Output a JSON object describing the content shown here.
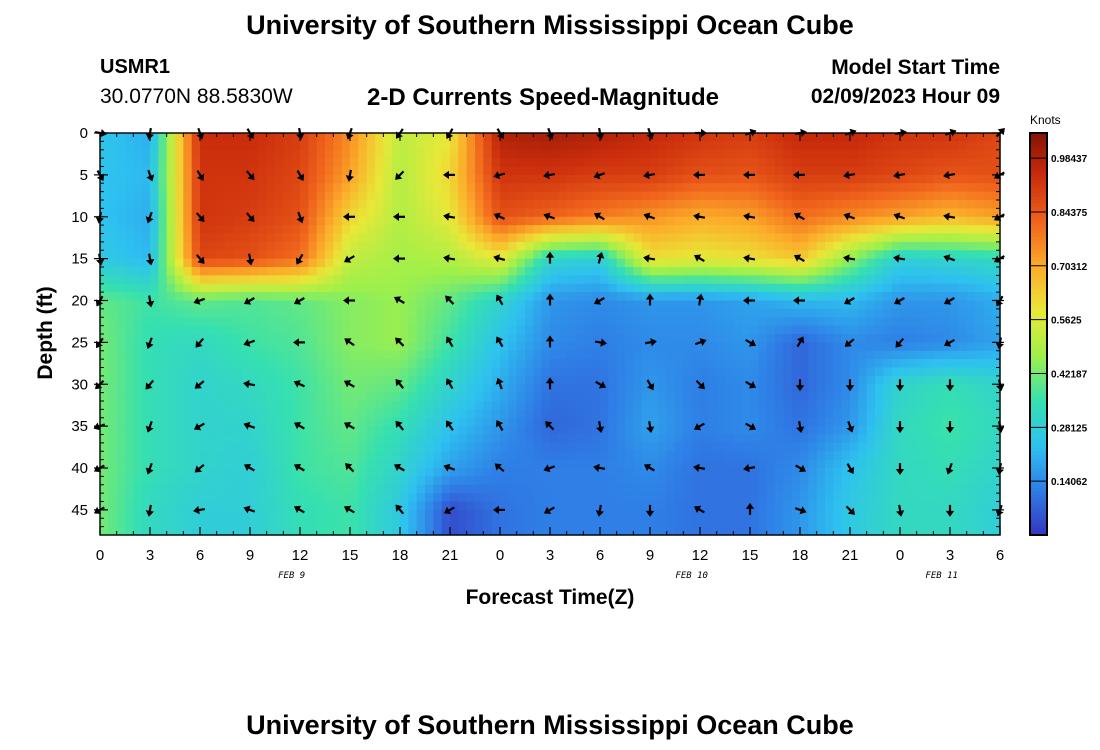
{
  "header": {
    "title": "University of Southern Mississippi Ocean Cube",
    "station": "USMR1",
    "coordinates": "30.0770N  88.5830W",
    "model_start_label": "Model Start Time",
    "model_start_value": "02/09/2023 Hour 09"
  },
  "footer": {
    "title": "University of Southern Mississippi Ocean Cube"
  },
  "chart_data": {
    "type": "heatmap",
    "title": "2-D Currents Speed-Magnitude",
    "xlabel": "Forecast Time(Z)",
    "ylabel": "Depth (ft)",
    "x_hours": [
      0,
      3,
      6,
      9,
      12,
      15,
      18,
      21,
      24,
      27,
      30,
      33,
      36,
      39,
      42,
      45,
      48,
      51,
      54
    ],
    "x_tick_labels": [
      "0",
      "3",
      "6",
      "9",
      "12",
      "15",
      "18",
      "21",
      "0",
      "3",
      "6",
      "9",
      "12",
      "15",
      "18",
      "21",
      "0",
      "3",
      "6"
    ],
    "day_labels": [
      {
        "text": "FEB 9",
        "hour": 11.5
      },
      {
        "text": "FEB 10",
        "hour": 35.5
      },
      {
        "text": "FEB 11",
        "hour": 50.5
      }
    ],
    "depth_levels_ft": [
      0,
      5,
      10,
      15,
      20,
      25,
      30,
      35,
      40,
      45
    ],
    "y_tick_labels": [
      "0",
      "5",
      "10",
      "15",
      "20",
      "25",
      "30",
      "35",
      "40",
      "45"
    ],
    "ylim": [
      0,
      48
    ],
    "xlim": [
      0,
      54
    ],
    "y_inverted": true,
    "colorbar": {
      "unit_label": "Knots",
      "min": 0.0,
      "max": 1.05,
      "tick_values": [
        0.14062,
        0.28125,
        0.42187,
        0.5625,
        0.70312,
        0.84375,
        0.98437
      ],
      "tick_labels": [
        "0.14062",
        "0.28125",
        "0.42187",
        "0.5625",
        "0.70312",
        "0.84375",
        "0.98437"
      ],
      "colors": [
        "#3535c0",
        "#2f7de6",
        "#2ec1f0",
        "#36e0b0",
        "#9ef04a",
        "#e8e838",
        "#fcac2a",
        "#f0641c",
        "#cc2e0c",
        "#861205"
      ]
    },
    "speed_knots": [
      [
        0.25,
        0.2,
        0.94,
        0.94,
        0.9,
        0.75,
        0.52,
        0.58,
        0.98,
        1.0,
        0.98,
        0.95,
        0.92,
        0.9,
        0.95,
        0.95,
        0.92,
        0.92,
        0.88
      ],
      [
        0.24,
        0.22,
        0.92,
        0.92,
        0.88,
        0.72,
        0.5,
        0.62,
        0.92,
        0.92,
        0.9,
        0.9,
        0.86,
        0.85,
        0.9,
        0.9,
        0.88,
        0.85,
        0.86
      ],
      [
        0.24,
        0.2,
        0.92,
        0.9,
        0.86,
        0.62,
        0.5,
        0.58,
        0.86,
        0.82,
        0.78,
        0.74,
        0.7,
        0.72,
        0.8,
        0.76,
        0.72,
        0.68,
        0.72
      ],
      [
        0.26,
        0.22,
        0.88,
        0.86,
        0.8,
        0.52,
        0.48,
        0.5,
        0.58,
        0.3,
        0.28,
        0.6,
        0.58,
        0.6,
        0.65,
        0.45,
        0.28,
        0.3,
        0.32
      ],
      [
        0.4,
        0.36,
        0.4,
        0.38,
        0.4,
        0.44,
        0.46,
        0.4,
        0.3,
        0.16,
        0.14,
        0.16,
        0.16,
        0.18,
        0.22,
        0.22,
        0.16,
        0.16,
        0.2
      ],
      [
        0.42,
        0.34,
        0.32,
        0.36,
        0.38,
        0.44,
        0.46,
        0.36,
        0.24,
        0.14,
        0.12,
        0.14,
        0.14,
        0.16,
        0.08,
        0.14,
        0.12,
        0.14,
        0.18
      ],
      [
        0.42,
        0.34,
        0.3,
        0.32,
        0.36,
        0.42,
        0.4,
        0.3,
        0.2,
        0.1,
        0.1,
        0.16,
        0.12,
        0.14,
        0.08,
        0.14,
        0.3,
        0.34,
        0.3
      ],
      [
        0.42,
        0.34,
        0.3,
        0.3,
        0.36,
        0.4,
        0.34,
        0.24,
        0.16,
        0.08,
        0.1,
        0.18,
        0.12,
        0.14,
        0.1,
        0.16,
        0.32,
        0.36,
        0.32
      ],
      [
        0.42,
        0.34,
        0.3,
        0.28,
        0.36,
        0.38,
        0.3,
        0.18,
        0.12,
        0.12,
        0.12,
        0.14,
        0.1,
        0.1,
        0.14,
        0.24,
        0.32,
        0.34,
        0.3
      ],
      [
        0.42,
        0.32,
        0.28,
        0.28,
        0.34,
        0.36,
        0.26,
        0.04,
        0.1,
        0.12,
        0.12,
        0.12,
        0.1,
        0.1,
        0.16,
        0.26,
        0.32,
        0.32,
        0.28
      ]
    ],
    "arrow_direction_deg": [
      [
        100,
        190,
        160,
        150,
        170,
        200,
        215,
        210,
        150,
        160,
        170,
        160,
        90,
        70,
        80,
        70,
        80,
        70,
        45
      ],
      [
        150,
        160,
        150,
        140,
        150,
        190,
        225,
        270,
        255,
        260,
        250,
        260,
        270,
        270,
        270,
        260,
        260,
        260,
        240
      ],
      [
        190,
        200,
        140,
        140,
        160,
        270,
        270,
        280,
        295,
        290,
        300,
        290,
        280,
        280,
        300,
        290,
        290,
        280,
        240
      ],
      [
        170,
        170,
        140,
        170,
        210,
        240,
        270,
        280,
        285,
        360,
        15,
        280,
        300,
        280,
        300,
        280,
        280,
        290,
        240
      ],
      [
        210,
        170,
        250,
        240,
        240,
        270,
        300,
        315,
        330,
        360,
        240,
        0,
        10,
        270,
        270,
        240,
        240,
        240,
        210
      ],
      [
        215,
        200,
        220,
        250,
        270,
        305,
        315,
        330,
        330,
        360,
        100,
        80,
        70,
        120,
        30,
        230,
        220,
        240,
        190
      ],
      [
        225,
        220,
        230,
        280,
        295,
        300,
        320,
        330,
        340,
        0,
        120,
        150,
        135,
        120,
        180,
        180,
        180,
        180,
        170
      ],
      [
        250,
        200,
        240,
        290,
        300,
        300,
        320,
        325,
        330,
        315,
        170,
        170,
        240,
        120,
        170,
        160,
        180,
        180,
        170
      ],
      [
        240,
        200,
        230,
        300,
        300,
        315,
        300,
        290,
        310,
        250,
        280,
        300,
        280,
        260,
        120,
        150,
        180,
        200,
        190
      ],
      [
        240,
        190,
        260,
        290,
        300,
        300,
        320,
        240,
        270,
        240,
        190,
        180,
        300,
        0,
        110,
        135,
        170,
        180,
        200
      ]
    ]
  }
}
